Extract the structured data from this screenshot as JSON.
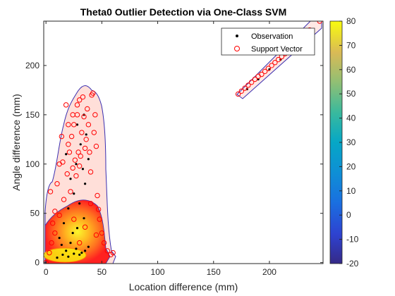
{
  "chart_data": {
    "type": "scatter",
    "title": "Theta0 Outlier Detection via One-Class SVM",
    "xlabel": "Location difference (mm)",
    "ylabel": "Angle difference (mm)",
    "xlim": [
      -2,
      248
    ],
    "ylim": [
      -1,
      245
    ],
    "xticks": [
      0,
      50,
      100,
      150,
      200
    ],
    "yticks": [
      0,
      50,
      100,
      150,
      200
    ],
    "grid": false,
    "legend_position": "top-right",
    "legend": [
      "Observation",
      "Support Vector"
    ],
    "colorbar": {
      "min": -20,
      "max": 80,
      "ticks": [
        -20,
        -10,
        0,
        10,
        20,
        30,
        40,
        50,
        60,
        70,
        80
      ],
      "colormap": "parula"
    },
    "series": [
      {
        "name": "Observation",
        "marker": "dot",
        "color": "#000000",
        "points": [
          [
            15,
            8
          ],
          [
            20,
            6
          ],
          [
            25,
            9
          ],
          [
            30,
            8
          ],
          [
            35,
            12
          ],
          [
            18,
            12
          ],
          [
            10,
            5
          ],
          [
            27,
            14
          ],
          [
            32,
            10
          ],
          [
            14,
            18
          ],
          [
            22,
            20
          ],
          [
            38,
            16
          ],
          [
            12,
            25
          ],
          [
            24,
            30
          ],
          [
            28,
            35
          ],
          [
            16,
            40
          ],
          [
            34,
            45
          ],
          [
            20,
            55
          ],
          [
            30,
            60
          ],
          [
            25,
            70
          ],
          [
            35,
            80
          ],
          [
            22,
            85
          ],
          [
            33,
            95
          ],
          [
            27,
            100
          ],
          [
            38,
            105
          ],
          [
            18,
            110
          ],
          [
            31,
            120
          ],
          [
            36,
            130
          ],
          [
            28,
            140
          ],
          [
            34,
            150
          ],
          [
            180,
            176
          ],
          [
            190,
            186
          ],
          [
            200,
            196
          ],
          [
            210,
            206
          ],
          [
            220,
            216
          ],
          [
            230,
            226
          ]
        ]
      },
      {
        "name": "Support Vector",
        "marker": "circle",
        "color": "#ff0000",
        "points": [
          [
            0,
            0
          ],
          [
            4,
            72
          ],
          [
            8,
            52
          ],
          [
            6,
            40
          ],
          [
            10,
            80
          ],
          [
            12,
            100
          ],
          [
            14,
            128
          ],
          [
            15,
            102
          ],
          [
            16,
            64
          ],
          [
            18,
            160
          ],
          [
            19,
            90
          ],
          [
            20,
            120
          ],
          [
            21,
            112
          ],
          [
            22,
            72
          ],
          [
            23,
            128
          ],
          [
            24,
            96
          ],
          [
            25,
            140
          ],
          [
            26,
            104
          ],
          [
            27,
            88
          ],
          [
            28,
            150
          ],
          [
            29,
            112
          ],
          [
            30,
            98
          ],
          [
            31,
            108
          ],
          [
            32,
            132
          ],
          [
            33,
            168
          ],
          [
            34,
            148
          ],
          [
            35,
            116
          ],
          [
            36,
            125
          ],
          [
            37,
            156
          ],
          [
            38,
            140
          ],
          [
            39,
            112
          ],
          [
            40,
            92
          ],
          [
            41,
            170
          ],
          [
            42,
            172
          ],
          [
            43,
            132
          ],
          [
            44,
            150
          ],
          [
            45,
            118
          ],
          [
            46,
            68
          ],
          [
            47,
            54
          ],
          [
            48,
            44
          ],
          [
            50,
            30
          ],
          [
            52,
            20
          ],
          [
            55,
            12
          ],
          [
            58,
            8
          ],
          [
            60,
            10
          ],
          [
            30,
            20
          ],
          [
            35,
            36
          ],
          [
            25,
            44
          ],
          [
            12,
            48
          ],
          [
            8,
            30
          ],
          [
            5,
            20
          ],
          [
            3,
            10
          ],
          [
            45,
            28
          ],
          [
            40,
            60
          ],
          [
            20,
            140
          ],
          [
            24,
            150
          ],
          [
            28,
            160
          ],
          [
            30,
            165
          ],
          [
            172,
            171
          ],
          [
            175,
            174
          ],
          [
            178,
            177
          ],
          [
            181,
            180
          ],
          [
            184,
            183
          ],
          [
            187,
            186
          ],
          [
            190,
            189
          ],
          [
            193,
            191
          ],
          [
            196,
            194
          ],
          [
            199,
            197
          ],
          [
            202,
            200
          ],
          [
            205,
            203
          ],
          [
            208,
            206
          ],
          [
            211,
            209
          ],
          [
            214,
            212
          ],
          [
            217,
            215
          ],
          [
            220,
            218
          ],
          [
            223,
            221
          ],
          [
            226,
            224
          ],
          [
            229,
            227
          ],
          [
            232,
            230
          ],
          [
            236,
            236
          ],
          [
            245,
            245
          ]
        ]
      }
    ]
  }
}
